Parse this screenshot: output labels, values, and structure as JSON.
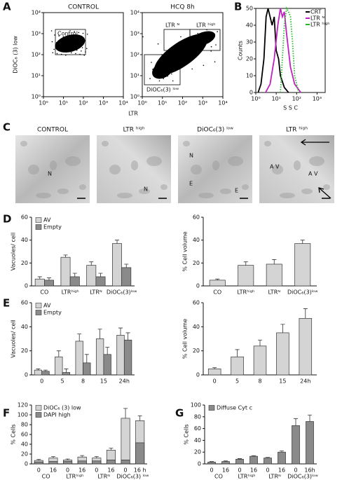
{
  "panel_labels": [
    "A",
    "B",
    "C",
    "D",
    "E",
    "F",
    "G"
  ],
  "images": [
    {
      "title": "CONTROL",
      "labels": [
        "N"
      ]
    },
    {
      "title": "LTR ʰⁱᵍʰ",
      "labels": [
        "N"
      ]
    },
    {
      "title": "DiOC₆(3) ˡᵒʷ",
      "labels": [
        "N",
        "E",
        "E"
      ]
    },
    {
      "title": "LTR ʰⁱᵍʰ",
      "labels": [
        "A V",
        "A V"
      ]
    }
  ],
  "chart_data": [
    {
      "type": "flow",
      "title": "CONTROL",
      "y_label": "DiOC₆ (3) low",
      "log_scale": true,
      "xlim": [
        1,
        10000
      ],
      "ylim": [
        1,
        10000
      ],
      "xticks": [
        {
          "value": 1,
          "label": "10⁰"
        },
        {
          "value": 10,
          "label": "10¹"
        },
        {
          "value": 100,
          "label": "10²"
        },
        {
          "value": 1000,
          "label": "10³"
        },
        {
          "value": 10000,
          "label": "10⁴"
        }
      ],
      "yticks": [
        {
          "value": 1,
          "label": "10⁰"
        },
        {
          "value": 10,
          "label": "10¹"
        },
        {
          "value": 100,
          "label": "10²"
        },
        {
          "value": 1000,
          "label": "10³"
        },
        {
          "value": 10000,
          "label": "10⁴"
        }
      ],
      "gates": [
        "Control"
      ]
    },
    {
      "type": "flow",
      "title": "HCQ 8h",
      "x_label": "LTR",
      "log_scale": true,
      "xlim": [
        1,
        10000
      ],
      "ylim": [
        1,
        10000
      ],
      "xticks": [
        {
          "value": 1,
          "label": "10⁰"
        },
        {
          "value": 10,
          "label": "10¹"
        },
        {
          "value": 100,
          "label": "10²"
        },
        {
          "value": 1000,
          "label": "10³"
        },
        {
          "value": 10000,
          "label": "10⁴"
        }
      ],
      "yticks": [
        {
          "value": 1,
          "label": "10⁰"
        },
        {
          "value": 10,
          "label": "10¹"
        },
        {
          "value": 100,
          "label": "10²"
        },
        {
          "value": 1000,
          "label": "10³"
        },
        {
          "value": 10000,
          "label": "10⁴"
        }
      ],
      "gates": [
        "LTR ᴺ",
        "LTR ʰⁱᵍʰ",
        "DiOC₆(3) ˡᵒʷ"
      ]
    },
    {
      "type": "line",
      "y_label": "Counts",
      "x_label": "S S C",
      "log_x": true,
      "legend": "upper right",
      "xlim": [
        1,
        2500
      ],
      "ylim": [
        0,
        50
      ],
      "yticks": [
        0,
        10,
        20,
        30,
        40,
        50
      ],
      "xticks": [
        {
          "value": 1,
          "label": "10⁰"
        },
        {
          "value": 10,
          "label": "10¹"
        },
        {
          "value": 100,
          "label": "10²"
        },
        {
          "value": 1000,
          "label": "10³"
        }
      ],
      "series": [
        {
          "name": "CRT",
          "color": "#000000",
          "x": [
            1.3,
            1.8,
            2.5,
            3.2,
            4,
            5,
            6.3,
            8,
            10,
            13,
            16,
            25,
            40
          ],
          "values": [
            0,
            5,
            20,
            45,
            50,
            45,
            40,
            45,
            25,
            20,
            10,
            3,
            0
          ]
        },
        {
          "name": "LTR ᴺ",
          "color": "#c020c0",
          "x": [
            3,
            5,
            8,
            12,
            16,
            20,
            25,
            32,
            50,
            80,
            160
          ],
          "values": [
            0,
            5,
            20,
            40,
            50,
            45,
            48,
            35,
            15,
            5,
            0
          ]
        },
        {
          "name": "LTR ʰⁱᵍʰ",
          "color": "#22bb22",
          "dash": "dotted",
          "x": [
            16,
            25,
            32,
            40,
            50,
            63,
            80,
            126
          ],
          "values": [
            0,
            40,
            50,
            48,
            45,
            30,
            10,
            0
          ]
        }
      ]
    },
    {
      "type": "bar",
      "y_label": "Vacuoles/ cell",
      "ylim": [
        0,
        60
      ],
      "yticks": [
        0,
        20,
        40,
        60
      ],
      "categories": [
        "CO",
        "LTRʰⁱᵍʰ",
        "LTRᴺ",
        "DiOC₆(3)ˡᵒʷ"
      ],
      "series": [
        {
          "name": "AV",
          "color": "#d4d4d4",
          "values": [
            6,
            25,
            18,
            37
          ],
          "errors": [
            2,
            2,
            3,
            3
          ]
        },
        {
          "name": "Empty",
          "color": "#8a8a8a",
          "values": [
            5,
            8,
            8,
            16
          ],
          "errors": [
            2,
            3,
            3,
            3
          ]
        }
      ]
    },
    {
      "type": "bar",
      "y_label": "% Cell volume",
      "ylim": [
        0,
        60
      ],
      "yticks": [
        0,
        20,
        40,
        60
      ],
      "categories": [
        "CO",
        "LTRʰⁱᵍʰ",
        "LTRᴺ",
        "DiOC₆(3)ˡᵒʷ"
      ],
      "series": [
        {
          "color": "#d4d4d4",
          "values": [
            5,
            18,
            19,
            37
          ],
          "errors": [
            1,
            3,
            4,
            3
          ]
        }
      ]
    },
    {
      "type": "bar",
      "y_label": "Vacuoles/ cell",
      "ylim": [
        0,
        60
      ],
      "yticks": [
        0,
        20,
        40,
        60
      ],
      "categories": [
        "0",
        "5",
        "8",
        "15",
        "24h"
      ],
      "series": [
        {
          "name": "AV",
          "color": "#d4d4d4",
          "values": [
            4,
            15,
            28,
            30,
            33
          ],
          "errors": [
            1,
            5,
            6,
            8,
            6
          ]
        },
        {
          "name": "Empty",
          "color": "#8a8a8a",
          "values": [
            3,
            2,
            10,
            17,
            29
          ],
          "errors": [
            1,
            3,
            7,
            6,
            6
          ]
        }
      ]
    },
    {
      "type": "bar",
      "y_label": "% Cell volume",
      "ylim": [
        0,
        60
      ],
      "yticks": [
        0,
        20,
        40,
        60
      ],
      "categories": [
        "0",
        "5",
        "8",
        "15",
        "24h"
      ],
      "series": [
        {
          "color": "#d4d4d4",
          "values": [
            5,
            15,
            24,
            35,
            47
          ],
          "errors": [
            1,
            6,
            5,
            7,
            8
          ]
        }
      ]
    },
    {
      "type": "bar",
      "y_label": "% Cells",
      "overlay": true,
      "ylim": [
        0,
        120
      ],
      "yticks": [
        0,
        20,
        40,
        60,
        80,
        100,
        120
      ],
      "categories": [
        "0",
        "16",
        "0",
        "16",
        "0",
        "16",
        "0",
        "16 h"
      ],
      "groups": [
        "CO",
        "LTRʰⁱᵍʰ",
        "LTRᴺ",
        "DiOC₆(3) ˡᵒʷ"
      ],
      "series": [
        {
          "name": "DiOC₆ (3) low",
          "color": "#d4d4d4",
          "values": [
            7,
            12,
            8,
            14,
            12,
            28,
            93,
            88
          ],
          "errors": [
            2,
            3,
            2,
            3,
            3,
            4,
            20,
            10
          ]
        },
        {
          "name": "DAPI high",
          "color": "#8a8a8a",
          "values": [
            4,
            5,
            5,
            6,
            6,
            8,
            8,
            43
          ]
        }
      ]
    },
    {
      "type": "bar",
      "y_label": "% Cells",
      "ylim": [
        0,
        100
      ],
      "yticks": [
        0,
        20,
        40,
        60,
        80,
        100
      ],
      "categories": [
        "0",
        "16",
        "0",
        "16",
        "0",
        "16",
        "0",
        "16h"
      ],
      "groups": [
        "CO",
        "LTRʰⁱᵍʰ",
        "LTRᴺ",
        "DiOC₆(3)ˡᵒʷ"
      ],
      "series": [
        {
          "name": "Diffuse Cyt c",
          "color": "#8a8a8a",
          "values": [
            3,
            4,
            8,
            13,
            10,
            20,
            65,
            72
          ],
          "errors": [
            1,
            1,
            1,
            1,
            1,
            2,
            12,
            11
          ]
        }
      ]
    }
  ]
}
